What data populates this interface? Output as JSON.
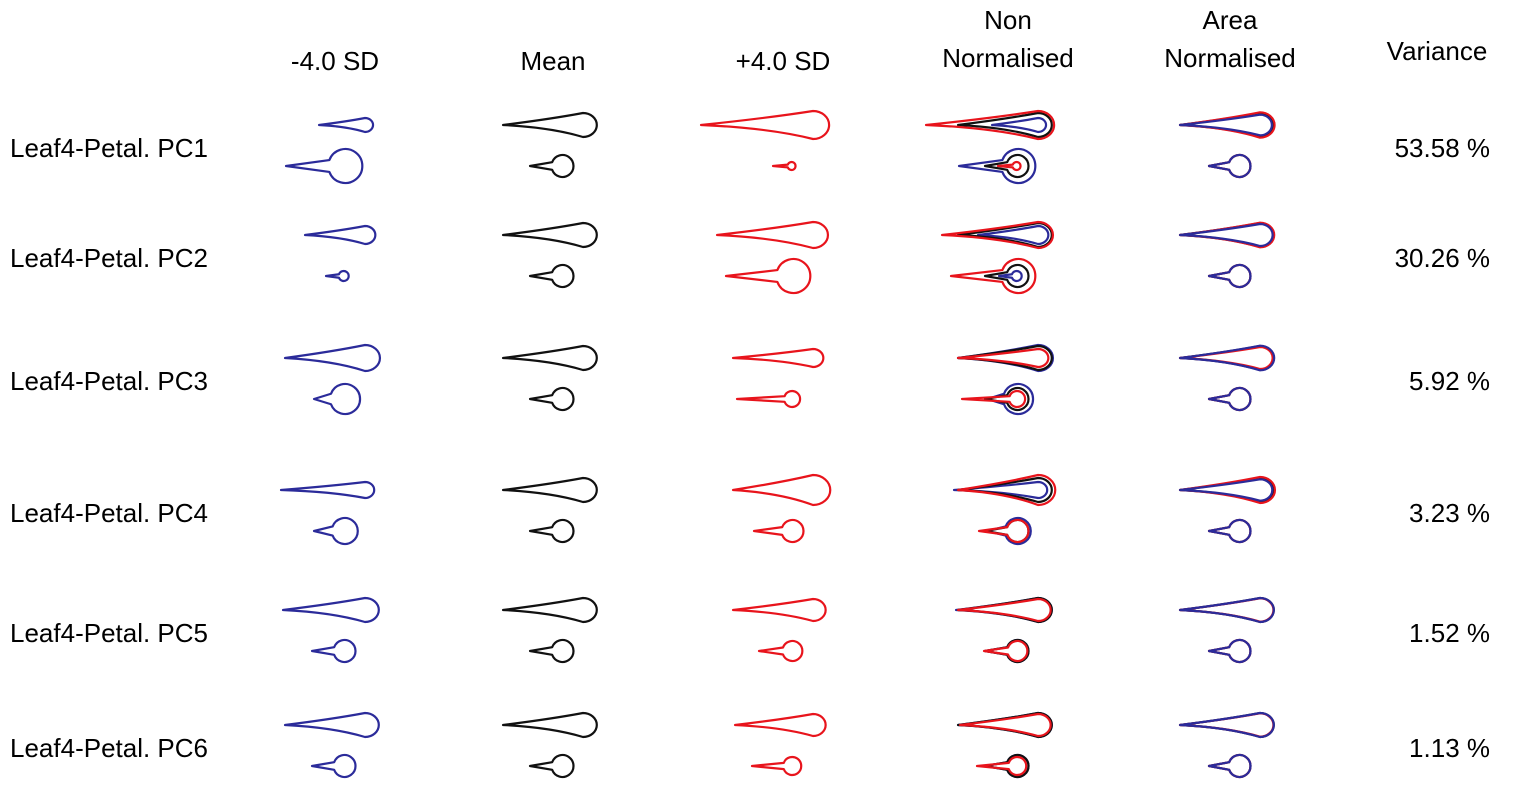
{
  "header": {
    "columns": [
      [
        "-4.0 SD"
      ],
      [
        "Mean"
      ],
      [
        "+4.0 SD"
      ],
      [
        "Non",
        "Normalised"
      ],
      [
        "Area",
        "Normalised"
      ],
      [
        "Variance"
      ]
    ]
  },
  "rows": [
    {
      "label": "Leaf4-Petal. PC1",
      "variance": "53.58 %"
    },
    {
      "label": "Leaf4-Petal. PC2",
      "variance": "30.26 %"
    },
    {
      "label": "Leaf4-Petal. PC3",
      "variance": "5.92 %"
    },
    {
      "label": "Leaf4-Petal. PC4",
      "variance": "3.23 %"
    },
    {
      "label": "Leaf4-Petal. PC5",
      "variance": "1.52 %"
    },
    {
      "label": "Leaf4-Petal. PC6",
      "variance": "1.13 %"
    }
  ]
}
